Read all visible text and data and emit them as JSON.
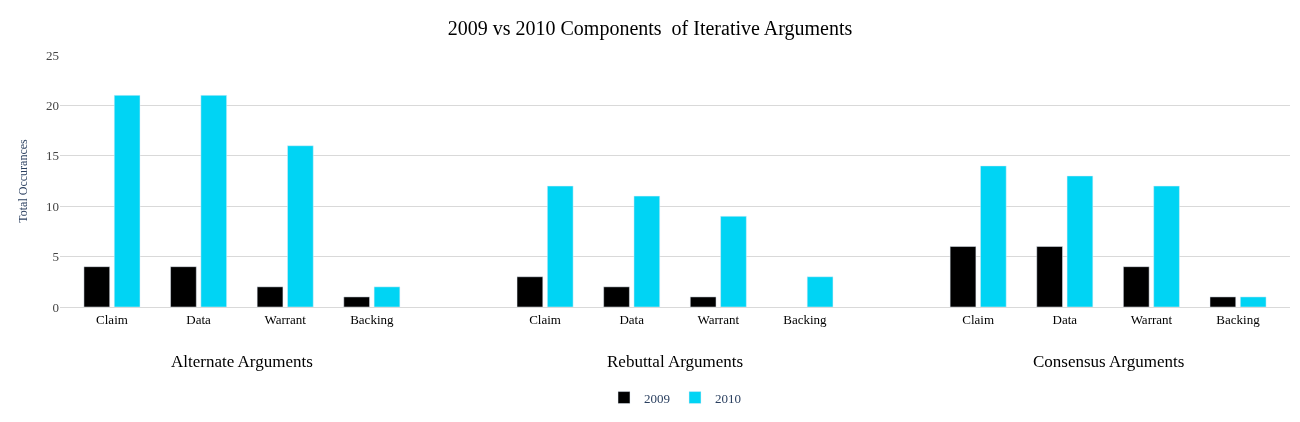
{
  "chart_data": {
    "type": "bar",
    "title": "2009 vs 2010 Components  of Iterative Arguments",
    "ylabel": "Total Occurances",
    "categories": [
      "Claim",
      "Data",
      "Warrant",
      "Backing",
      null,
      "Claim",
      "Data",
      "Warrant",
      "Backing",
      null,
      "Claim",
      "Data",
      "Warrant",
      "Backing"
    ],
    "series": [
      {
        "name": "2009",
        "color": "#000000",
        "values": [
          4,
          4,
          2,
          1,
          null,
          3,
          2,
          1,
          null,
          null,
          6,
          6,
          4,
          1
        ]
      },
      {
        "name": "2010",
        "color": "#00d4f4",
        "values": [
          21,
          21,
          16,
          2,
          null,
          12,
          11,
          9,
          3,
          null,
          14,
          13,
          12,
          1
        ]
      }
    ],
    "annotations": [
      "Alternate Arguments",
      "Rebuttal Arguments",
      "Consensus Arguments"
    ],
    "ylim": [
      0,
      25
    ],
    "yticks": [
      0,
      5,
      10,
      15,
      20,
      25
    ],
    "grid": "y",
    "legend": "bottom"
  }
}
